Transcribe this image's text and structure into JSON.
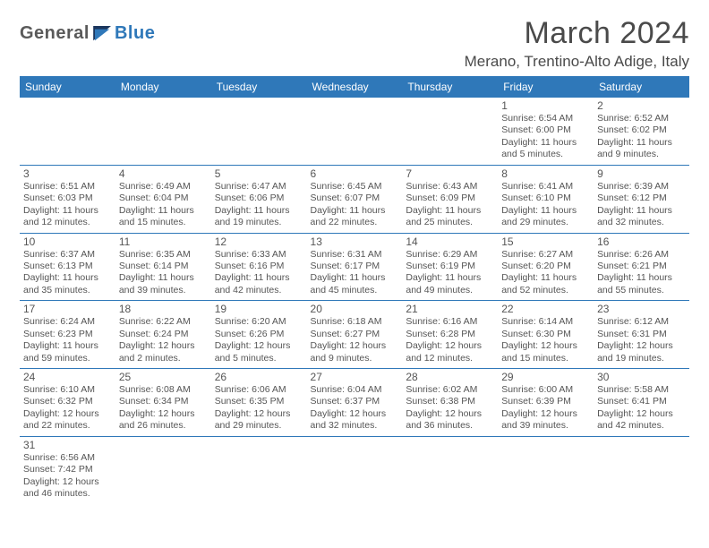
{
  "logo": {
    "text1": "General",
    "text2": "Blue"
  },
  "header": {
    "month": "March 2024",
    "location": "Merano, Trentino-Alto Adige, Italy"
  },
  "colors": {
    "accent": "#2f78b9",
    "text": "#4a4a4a",
    "headerText": "#ffffff"
  },
  "weekdays": [
    "Sunday",
    "Monday",
    "Tuesday",
    "Wednesday",
    "Thursday",
    "Friday",
    "Saturday"
  ],
  "weeks": [
    [
      null,
      null,
      null,
      null,
      null,
      {
        "n": "1",
        "sr": "6:54 AM",
        "ss": "6:00 PM",
        "d": "11 hours and 5 minutes."
      },
      {
        "n": "2",
        "sr": "6:52 AM",
        "ss": "6:02 PM",
        "d": "11 hours and 9 minutes."
      }
    ],
    [
      {
        "n": "3",
        "sr": "6:51 AM",
        "ss": "6:03 PM",
        "d": "11 hours and 12 minutes."
      },
      {
        "n": "4",
        "sr": "6:49 AM",
        "ss": "6:04 PM",
        "d": "11 hours and 15 minutes."
      },
      {
        "n": "5",
        "sr": "6:47 AM",
        "ss": "6:06 PM",
        "d": "11 hours and 19 minutes."
      },
      {
        "n": "6",
        "sr": "6:45 AM",
        "ss": "6:07 PM",
        "d": "11 hours and 22 minutes."
      },
      {
        "n": "7",
        "sr": "6:43 AM",
        "ss": "6:09 PM",
        "d": "11 hours and 25 minutes."
      },
      {
        "n": "8",
        "sr": "6:41 AM",
        "ss": "6:10 PM",
        "d": "11 hours and 29 minutes."
      },
      {
        "n": "9",
        "sr": "6:39 AM",
        "ss": "6:12 PM",
        "d": "11 hours and 32 minutes."
      }
    ],
    [
      {
        "n": "10",
        "sr": "6:37 AM",
        "ss": "6:13 PM",
        "d": "11 hours and 35 minutes."
      },
      {
        "n": "11",
        "sr": "6:35 AM",
        "ss": "6:14 PM",
        "d": "11 hours and 39 minutes."
      },
      {
        "n": "12",
        "sr": "6:33 AM",
        "ss": "6:16 PM",
        "d": "11 hours and 42 minutes."
      },
      {
        "n": "13",
        "sr": "6:31 AM",
        "ss": "6:17 PM",
        "d": "11 hours and 45 minutes."
      },
      {
        "n": "14",
        "sr": "6:29 AM",
        "ss": "6:19 PM",
        "d": "11 hours and 49 minutes."
      },
      {
        "n": "15",
        "sr": "6:27 AM",
        "ss": "6:20 PM",
        "d": "11 hours and 52 minutes."
      },
      {
        "n": "16",
        "sr": "6:26 AM",
        "ss": "6:21 PM",
        "d": "11 hours and 55 minutes."
      }
    ],
    [
      {
        "n": "17",
        "sr": "6:24 AM",
        "ss": "6:23 PM",
        "d": "11 hours and 59 minutes."
      },
      {
        "n": "18",
        "sr": "6:22 AM",
        "ss": "6:24 PM",
        "d": "12 hours and 2 minutes."
      },
      {
        "n": "19",
        "sr": "6:20 AM",
        "ss": "6:26 PM",
        "d": "12 hours and 5 minutes."
      },
      {
        "n": "20",
        "sr": "6:18 AM",
        "ss": "6:27 PM",
        "d": "12 hours and 9 minutes."
      },
      {
        "n": "21",
        "sr": "6:16 AM",
        "ss": "6:28 PM",
        "d": "12 hours and 12 minutes."
      },
      {
        "n": "22",
        "sr": "6:14 AM",
        "ss": "6:30 PM",
        "d": "12 hours and 15 minutes."
      },
      {
        "n": "23",
        "sr": "6:12 AM",
        "ss": "6:31 PM",
        "d": "12 hours and 19 minutes."
      }
    ],
    [
      {
        "n": "24",
        "sr": "6:10 AM",
        "ss": "6:32 PM",
        "d": "12 hours and 22 minutes."
      },
      {
        "n": "25",
        "sr": "6:08 AM",
        "ss": "6:34 PM",
        "d": "12 hours and 26 minutes."
      },
      {
        "n": "26",
        "sr": "6:06 AM",
        "ss": "6:35 PM",
        "d": "12 hours and 29 minutes."
      },
      {
        "n": "27",
        "sr": "6:04 AM",
        "ss": "6:37 PM",
        "d": "12 hours and 32 minutes."
      },
      {
        "n": "28",
        "sr": "6:02 AM",
        "ss": "6:38 PM",
        "d": "12 hours and 36 minutes."
      },
      {
        "n": "29",
        "sr": "6:00 AM",
        "ss": "6:39 PM",
        "d": "12 hours and 39 minutes."
      },
      {
        "n": "30",
        "sr": "5:58 AM",
        "ss": "6:41 PM",
        "d": "12 hours and 42 minutes."
      }
    ],
    [
      {
        "n": "31",
        "sr": "6:56 AM",
        "ss": "7:42 PM",
        "d": "12 hours and 46 minutes."
      },
      null,
      null,
      null,
      null,
      null,
      null
    ]
  ],
  "labels": {
    "sunrise": "Sunrise: ",
    "sunset": "Sunset: ",
    "daylight": "Daylight: "
  }
}
